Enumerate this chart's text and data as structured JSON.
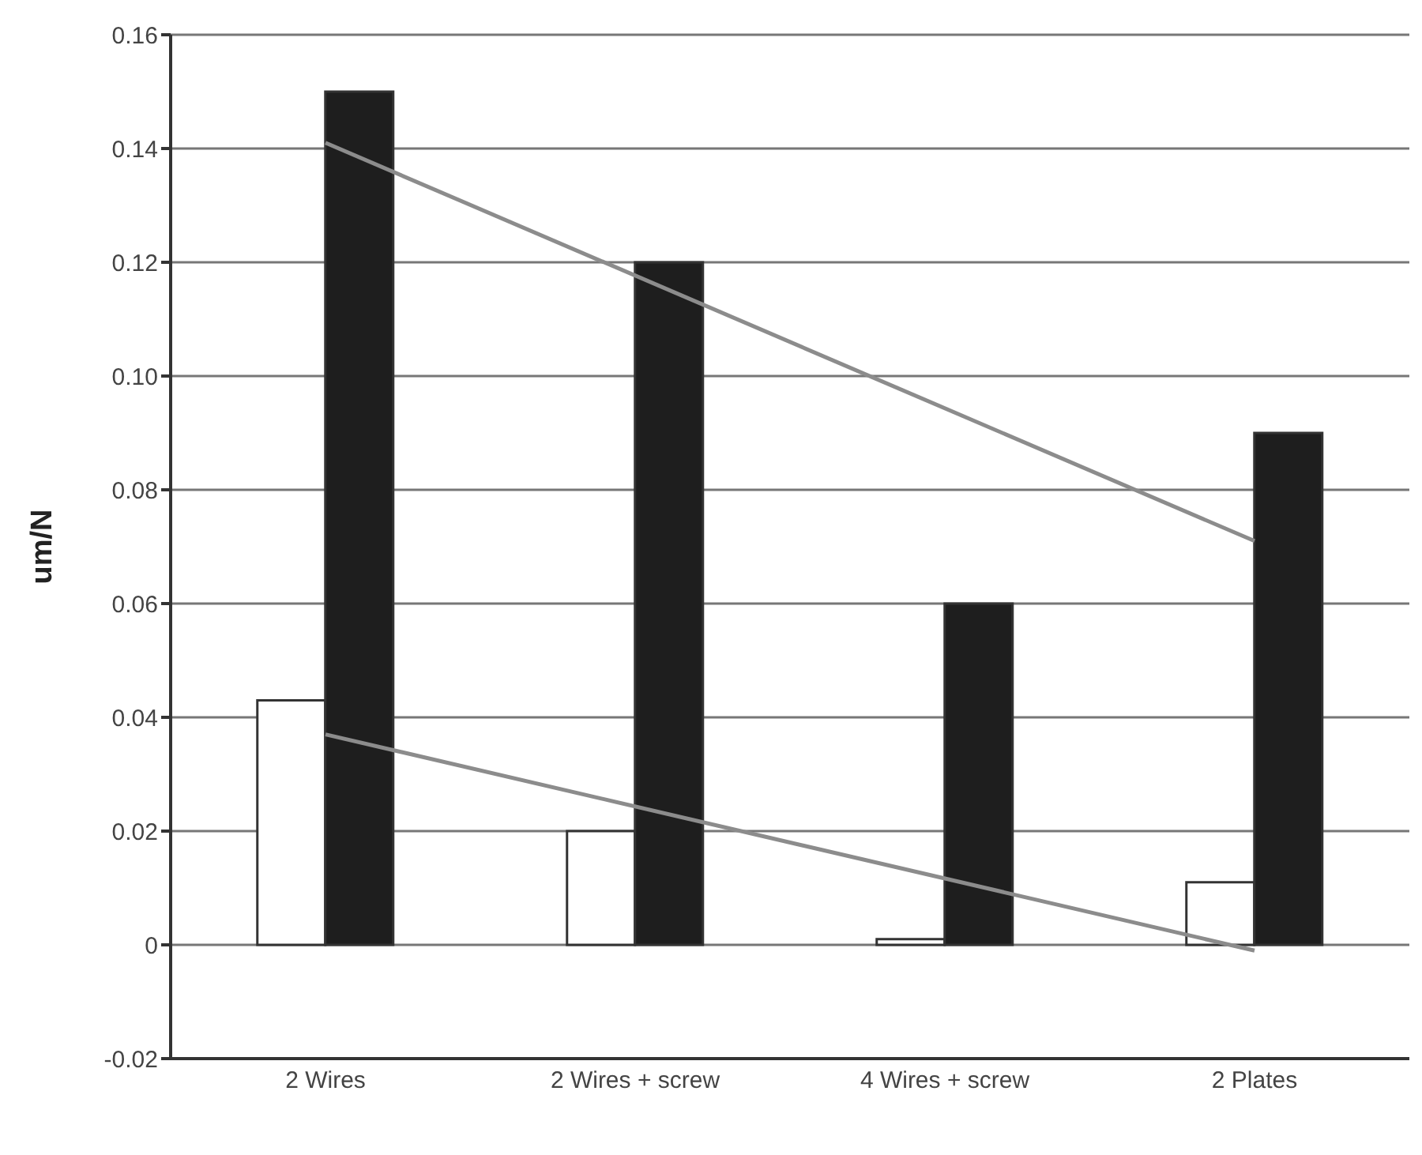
{
  "chart_data": {
    "type": "bar",
    "ylabel": "um/N",
    "categories": [
      "2 Wires",
      "2 Wires + screw",
      "4 Wires + screw",
      "2 Plates"
    ],
    "series": [
      {
        "color": "#ffffff",
        "values": [
          0.043,
          0.02,
          0.001,
          0.011
        ]
      },
      {
        "color": "#1e1e1e",
        "values": [
          0.15,
          0.12,
          0.06,
          0.09
        ]
      },
      {
        "type": "line",
        "color": "#8c8c8c",
        "x": [
          "2 Wires",
          "2 Plates"
        ],
        "values": [
          0.141,
          0.071
        ]
      },
      {
        "type": "line",
        "color": "#8c8c8c",
        "x": [
          "2 Wires",
          "2 Plates"
        ],
        "values": [
          0.037,
          -0.001
        ]
      }
    ],
    "ylim": [
      -0.02,
      0.16
    ],
    "yticks": [
      -0.02,
      0,
      0.02,
      0.04,
      0.06,
      0.08,
      {
        "value": 0.1,
        "label": "0.10"
      },
      0.12,
      0.14,
      0.16
    ],
    "grid": "y",
    "marker": "none"
  }
}
